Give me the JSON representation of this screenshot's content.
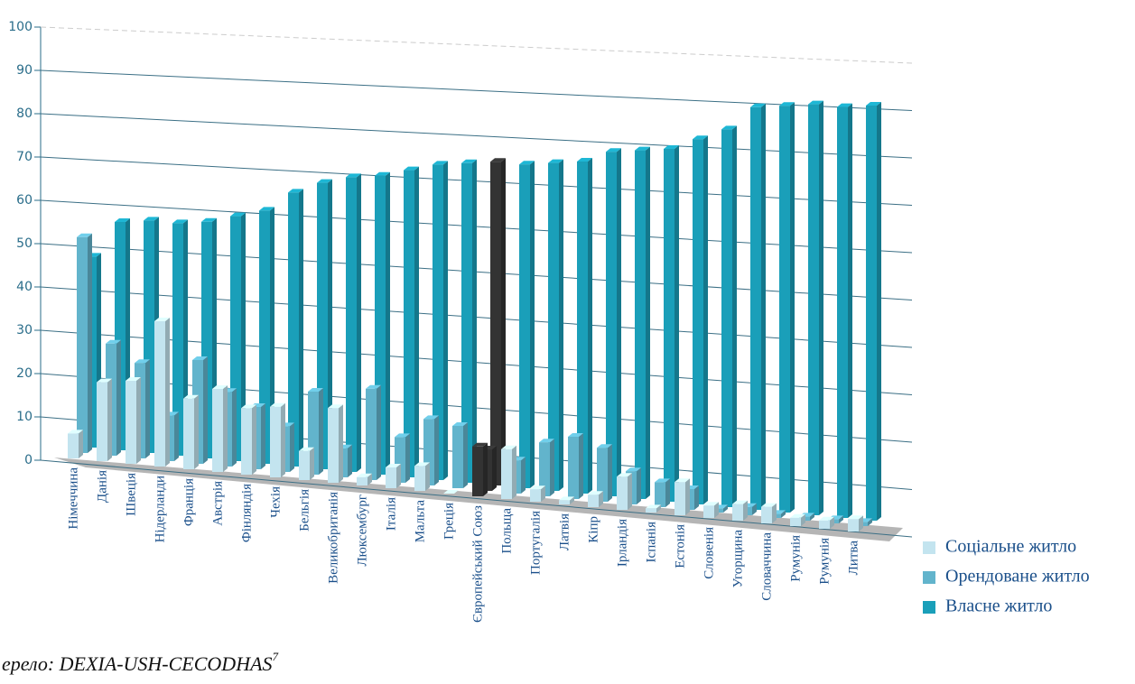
{
  "chart_data": {
    "type": "bar3d",
    "source": "ерело: DEXIA-USH-CECODHAS",
    "source_ref": "7",
    "categories": [
      "Німеччина",
      "Данія",
      "Швеція",
      "Нідерланди",
      "Франція",
      "Австрія",
      "Фінляндія",
      "Чехія",
      "Бельгія",
      "Великобританія",
      "Люксембург",
      "Італія",
      "Мальта",
      "Греція",
      "Європейський Союз",
      "Польща",
      "Португалія",
      "Латвія",
      "Кіпр",
      "Ірландія",
      "Іспанія",
      "Естонія",
      "Словенія",
      "Угорщина",
      "Словаччина",
      "Румунія",
      "Румунія",
      "Литва"
    ],
    "series": [
      {
        "name": "Соціальне житло",
        "color": "#c3e4ef",
        "colors": [
          "#c3e4ef",
          "#c3e4ef",
          "#c3e4ef",
          "#c3e4ef",
          "#c3e4ef",
          "#c3e4ef",
          "#c3e4ef",
          "#c3e4ef",
          "#c3e4ef",
          "#c3e4ef",
          "#c3e4ef",
          "#c3e4ef",
          "#c3e4ef",
          "#c3e4ef",
          "#333333",
          "#c3e4ef",
          "#c3e4ef",
          "#c3e4ef",
          "#c3e4ef",
          "#c3e4ef",
          "#c3e4ef",
          "#c3e4ef",
          "#c3e4ef",
          "#c3e4ef",
          "#c3e4ef",
          "#c3e4ef",
          "#c3e4ef",
          "#c3e4ef"
        ],
        "values": [
          6,
          19,
          20,
          35,
          17,
          20,
          16,
          17,
          7,
          18,
          2,
          5,
          6,
          0,
          12,
          12,
          3,
          1,
          3,
          8,
          1,
          8,
          3,
          4,
          4,
          2,
          2,
          3
        ]
      },
      {
        "name": "Орендоване житло",
        "color": "#62b4cc",
        "colors": [
          "#62b4cc",
          "#62b4cc",
          "#62b4cc",
          "#62b4cc",
          "#62b4cc",
          "#62b4cc",
          "#62b4cc",
          "#62b4cc",
          "#62b4cc",
          "#62b4cc",
          "#62b4cc",
          "#62b4cc",
          "#62b4cc",
          "#62b4cc",
          "#333333",
          "#62b4cc",
          "#62b4cc",
          "#62b4cc",
          "#62b4cc",
          "#62b4cc",
          "#62b4cc",
          "#62b4cc",
          "#62b4cc",
          "#62b4cc",
          "#62b4cc",
          "#62b4cc",
          "#62b4cc",
          "#62b4cc"
        ],
        "values": [
          52,
          27,
          23,
          11,
          25,
          18,
          15,
          11,
          20,
          7,
          22,
          11,
          16,
          15,
          10,
          8,
          13,
          15,
          13,
          8,
          6,
          5,
          1,
          2,
          1,
          1,
          1,
          1
        ]
      },
      {
        "name": "Власне житло",
        "color": "#1a9fb9",
        "colors": [
          "#1a9fb9",
          "#1a9fb9",
          "#1a9fb9",
          "#1a9fb9",
          "#1a9fb9",
          "#1a9fb9",
          "#1a9fb9",
          "#1a9fb9",
          "#1a9fb9",
          "#1a9fb9",
          "#1a9fb9",
          "#1a9fb9",
          "#1a9fb9",
          "#1a9fb9",
          "#333333",
          "#1a9fb9",
          "#1a9fb9",
          "#1a9fb9",
          "#1a9fb9",
          "#1a9fb9",
          "#1a9fb9",
          "#1a9fb9",
          "#1a9fb9",
          "#1a9fb9",
          "#1a9fb9",
          "#1a9fb9",
          "#1a9fb9",
          "#1a9fb9"
        ],
        "values": [
          46,
          55,
          56,
          56,
          57,
          59,
          61,
          66,
          69,
          71,
          72,
          74,
          76,
          77,
          78,
          78,
          79,
          80,
          83,
          84,
          85,
          88,
          91,
          97,
          98,
          99,
          99,
          100
        ]
      }
    ],
    "ylim": [
      0,
      100
    ],
    "yticks": [
      0,
      10,
      20,
      30,
      40,
      50,
      60,
      70,
      80,
      90,
      100
    ],
    "grid": true,
    "legend": "bottom-right"
  }
}
